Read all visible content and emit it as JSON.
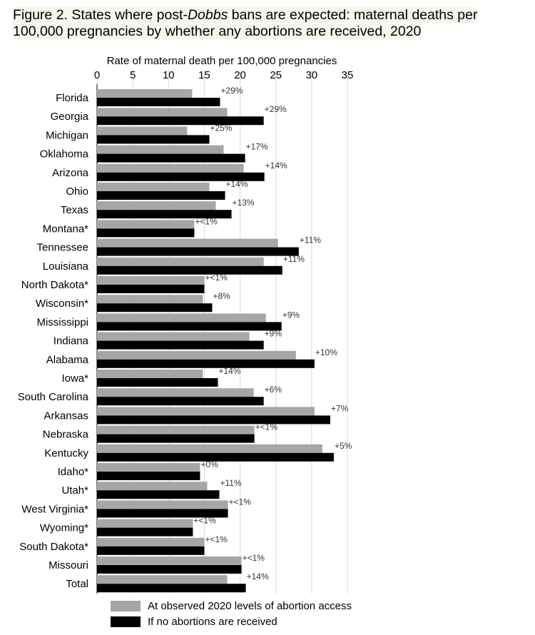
{
  "title": {
    "prefix": "Figure 2. States where post-",
    "italic": "Dobbs",
    "suffix": " bans are expected: maternal deaths per 100,000 pregnancies by whether any abortions are received, 2020"
  },
  "chart_data": {
    "type": "bar",
    "orientation": "horizontal",
    "xlabel": "Rate of maternal death per 100,000 pregnancies",
    "xaxis_position": "top",
    "xlim": [
      0,
      35
    ],
    "xticks": [
      0,
      5,
      10,
      15,
      20,
      25,
      30,
      35
    ],
    "grid": true,
    "legend_position": "bottom",
    "categories": [
      "Florida",
      "Georgia",
      "Michigan",
      "Oklahoma",
      "Arizona",
      "Ohio",
      "Texas",
      "Montana*",
      "Tennessee",
      "Louisiana",
      "North Dakota*",
      "Wisconsin*",
      "Mississippi",
      "Indiana",
      "Alabama",
      "Iowa*",
      "South Carolina",
      "Arkansas",
      "Nebraska",
      "Kentucky",
      "Idaho*",
      "Utah*",
      "West Virginia*",
      "Wyoming*",
      "South Dakota*",
      "Missouri",
      "Total"
    ],
    "series": [
      {
        "name": "At observed 2020 levels of abortion access",
        "color": "#a6a6a6",
        "values": [
          13.3,
          18.2,
          12.6,
          17.7,
          20.5,
          15.7,
          16.6,
          13.6,
          25.3,
          23.3,
          15.0,
          14.8,
          23.6,
          21.3,
          27.8,
          14.8,
          21.9,
          30.4,
          22.0,
          31.5,
          14.4,
          15.4,
          18.3,
          13.4,
          15.0,
          20.2,
          18.2
        ]
      },
      {
        "name": "If no abortions are received",
        "color": "#000000",
        "values": [
          17.2,
          23.3,
          15.7,
          20.7,
          23.4,
          17.9,
          18.8,
          13.6,
          28.2,
          25.9,
          15.0,
          16.1,
          25.8,
          23.3,
          30.4,
          16.9,
          23.3,
          32.6,
          22.0,
          33.1,
          14.4,
          17.1,
          18.3,
          13.4,
          15.0,
          20.2,
          20.8
        ]
      }
    ],
    "annotations": [
      "+29%",
      "+29%",
      "+25%",
      "+17%",
      "+14%",
      "+14%",
      "+13%",
      "+<1%",
      "+11%",
      "+11%",
      "+<1%",
      "+8%",
      "+9%",
      "+9%",
      "+10%",
      "+14%",
      "+6%",
      "+7%",
      "+<1%",
      "+5%",
      "+0%",
      "+11%",
      "+<1%",
      "+<1%",
      "+<1%",
      "+<1%",
      "+14%"
    ]
  }
}
